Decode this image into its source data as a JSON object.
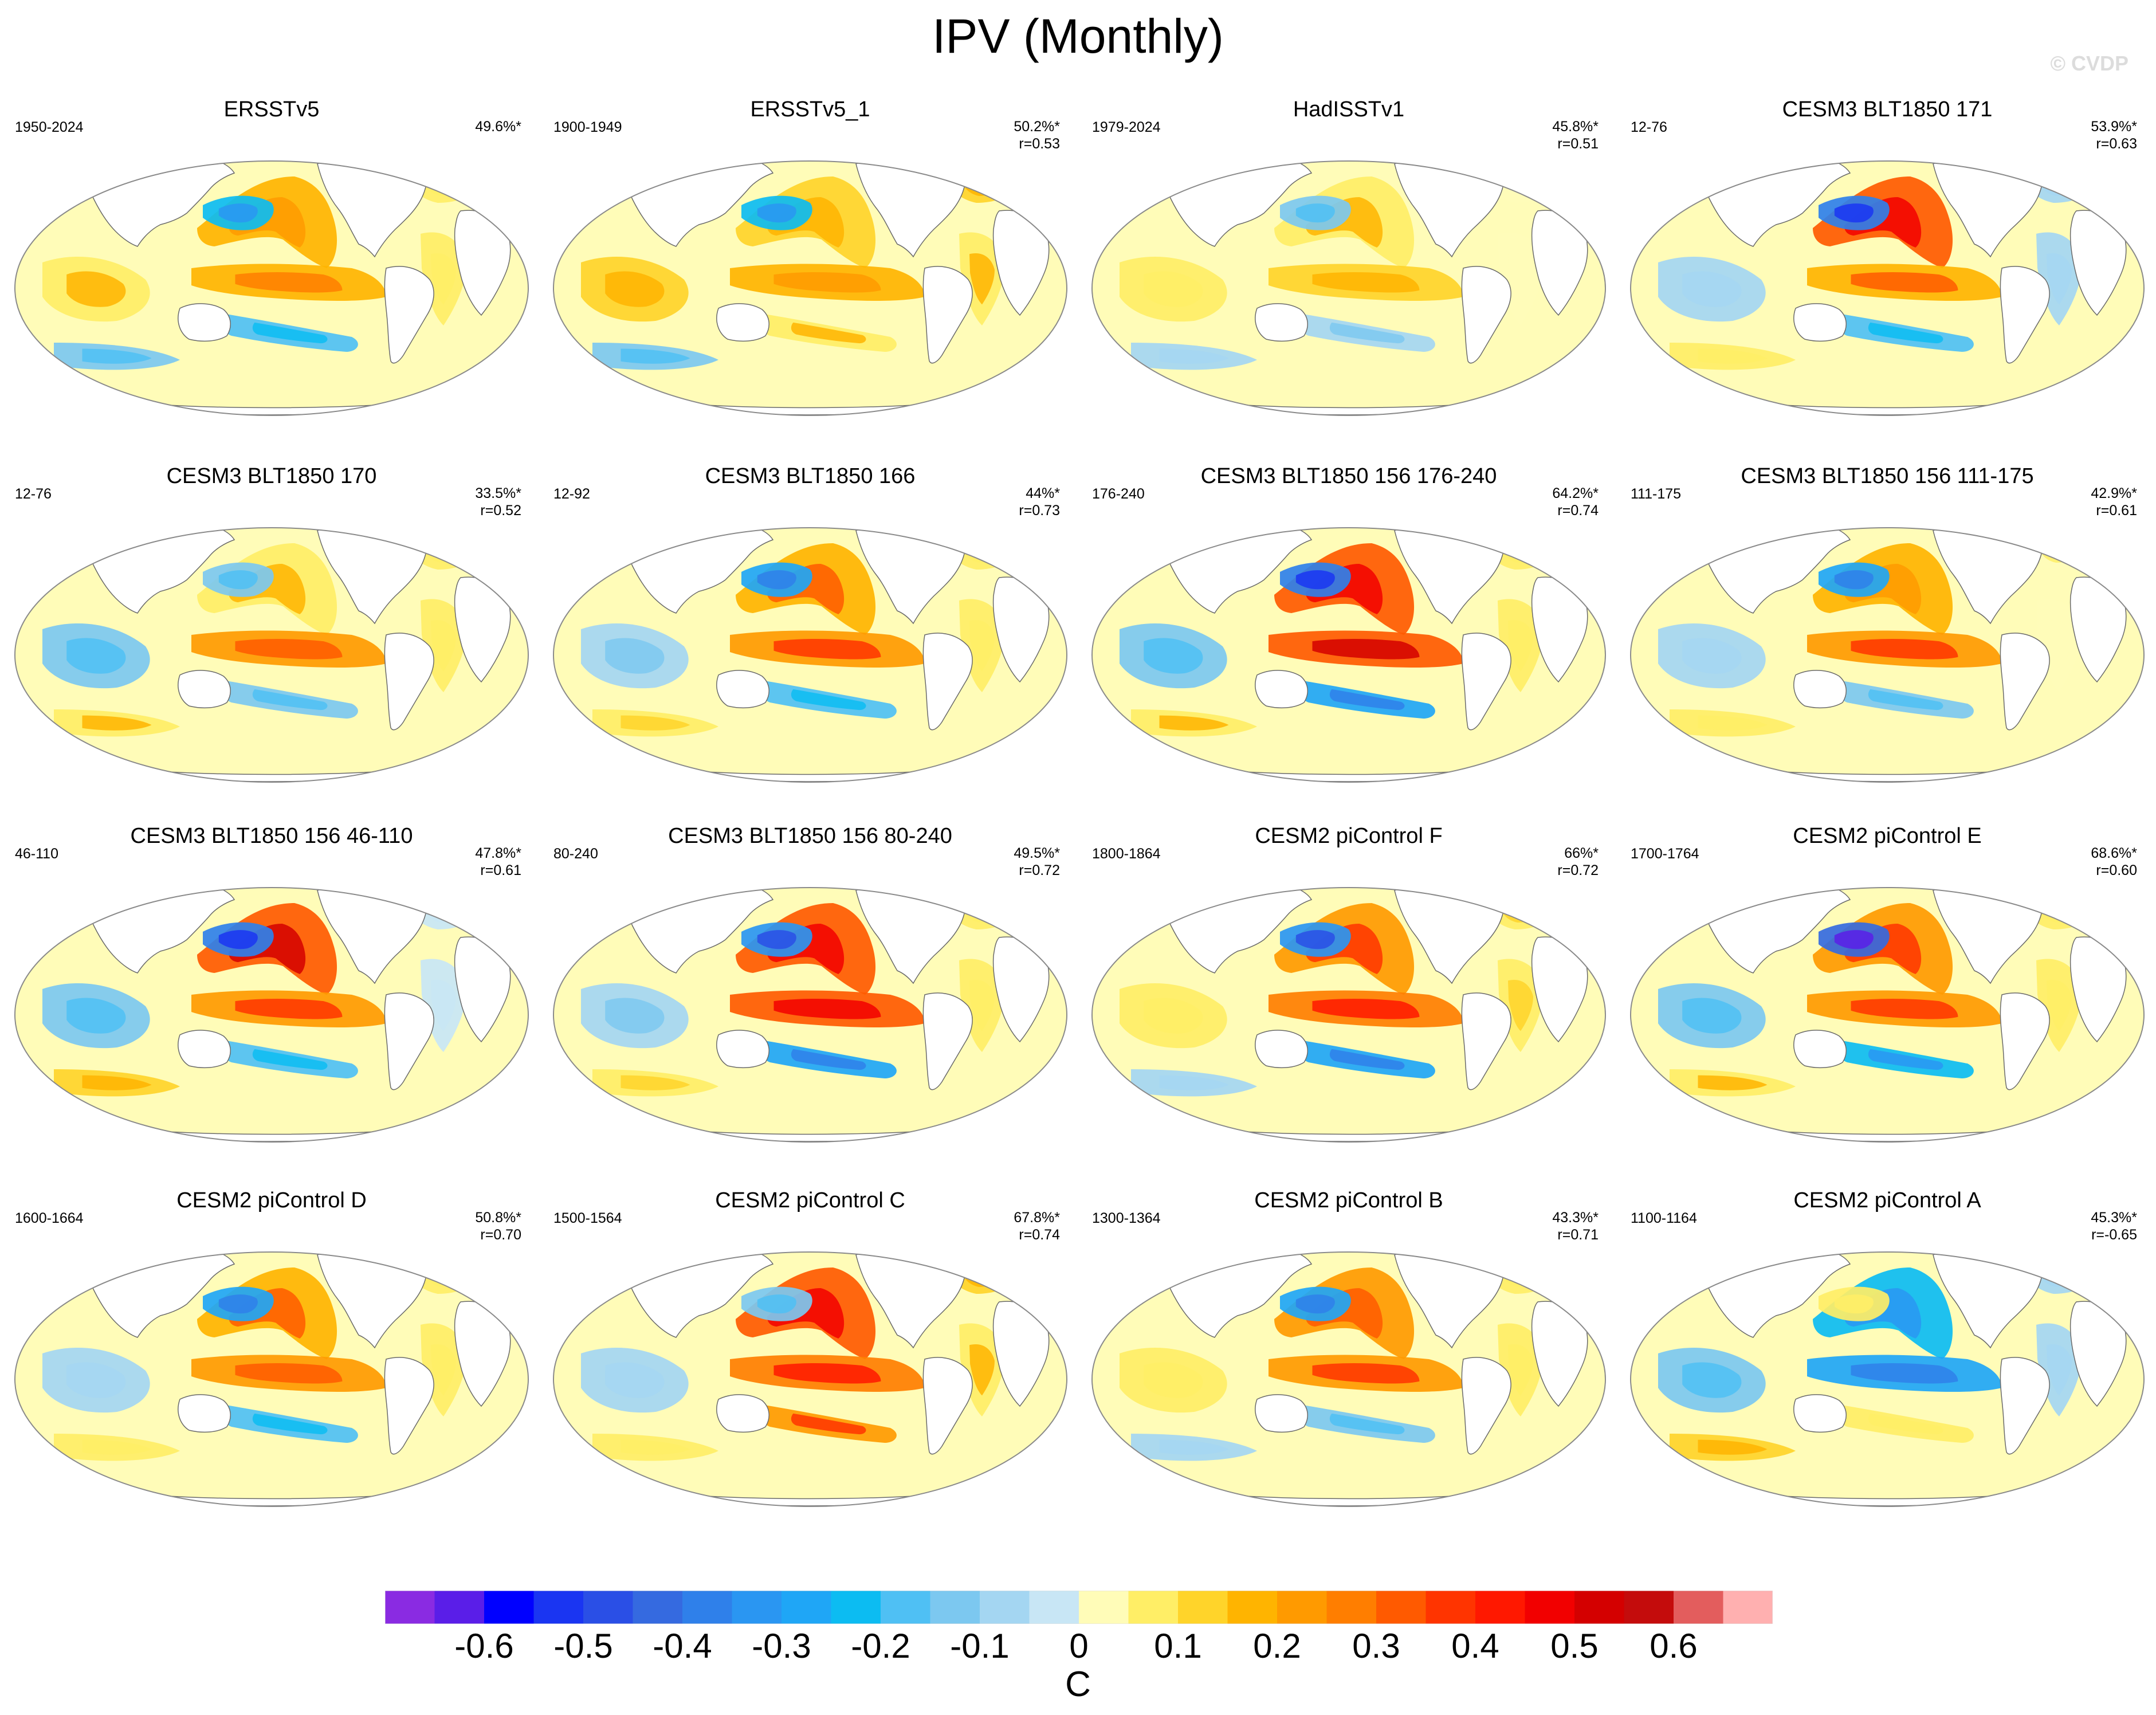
{
  "title": "IPV (Monthly)",
  "copyright": "© CVDP",
  "colors": {
    "palette": [
      "#8a2be2",
      "#5a1ee8",
      "#0000ff",
      "#1a35f2",
      "#2a4fe6",
      "#356ae0",
      "#2f80ea",
      "#2a96f2",
      "#1fa6f6",
      "#0cbcf2",
      "#4fc0f4",
      "#7cc8f0",
      "#a4d6f2",
      "#c8e6f5",
      "#fffcb8",
      "#ffee66",
      "#ffd42a",
      "#ffb400",
      "#ff9a00",
      "#ff7e00",
      "#ff5a00",
      "#ff3400",
      "#ff1800",
      "#f20000",
      "#d40000",
      "#c40c0c",
      "#e35d5d",
      "#ffb0b0"
    ],
    "land": "#ffffff",
    "ocean_base": "#fff8b0"
  },
  "colorbar": {
    "ticks": [
      "-0.6",
      "-0.5",
      "-0.4",
      "-0.3",
      "-0.2",
      "-0.1",
      "0",
      "0.1",
      "0.2",
      "0.3",
      "0.4",
      "0.5",
      "0.6"
    ],
    "units": "C"
  },
  "panels": [
    {
      "name": "ERSSTv5",
      "years": "1950-2024",
      "pct": "49.6%*",
      "r": "",
      "pattern": {
        "np": 0.15,
        "trop": 0.18,
        "kuro": -0.2,
        "sp": -0.15,
        "io": 0.1,
        "atl": 0.05
      }
    },
    {
      "name": "ERSSTv5_1",
      "years": "1900-1949",
      "pct": "50.2%*",
      "r": "r=0.53",
      "pattern": {
        "np": 0.12,
        "trop": 0.15,
        "kuro": -0.2,
        "sp": 0.1,
        "io": 0.12,
        "atl": 0.1
      }
    },
    {
      "name": "HadISSTv1",
      "years": "1979-2024",
      "pct": "45.8%*",
      "r": "r=0.51",
      "pattern": {
        "np": 0.1,
        "trop": 0.12,
        "kuro": -0.1,
        "sp": -0.08,
        "io": 0.05,
        "atl": 0.02
      }
    },
    {
      "name": "CESM3 BLT1850 171",
      "years": "12-76",
      "pct": "53.9%*",
      "r": "r=0.63",
      "pattern": {
        "np": 0.3,
        "trop": 0.2,
        "kuro": -0.35,
        "sp": -0.15,
        "io": -0.05,
        "atl": -0.05
      }
    },
    {
      "name": "CESM3 BLT1850 170",
      "years": "12-76",
      "pct": "33.5%*",
      "r": "r=0.52",
      "pattern": {
        "np": 0.1,
        "trop": 0.22,
        "kuro": -0.1,
        "sp": -0.12,
        "io": -0.1,
        "atl": 0.05
      }
    },
    {
      "name": "CESM3 BLT1850 166",
      "years": "12-92",
      "pct": "44%*",
      "r": "r=0.73",
      "pattern": {
        "np": 0.2,
        "trop": 0.25,
        "kuro": -0.25,
        "sp": -0.15,
        "io": -0.08,
        "atl": 0.05
      }
    },
    {
      "name": "CESM3 BLT1850 156 176-240",
      "years": "176-240",
      "pct": "64.2%*",
      "r": "r=0.74",
      "pattern": {
        "np": 0.3,
        "trop": 0.35,
        "kuro": -0.35,
        "sp": -0.25,
        "io": -0.1,
        "atl": 0.05
      }
    },
    {
      "name": "CESM3 BLT1850 156 111-175",
      "years": "111-175",
      "pct": "42.9%*",
      "r": "r=0.61",
      "pattern": {
        "np": 0.15,
        "trop": 0.25,
        "kuro": -0.25,
        "sp": -0.12,
        "io": -0.05,
        "atl": 0.03
      }
    },
    {
      "name": "CESM3 BLT1850 156 46-110",
      "years": "46-110",
      "pct": "47.8%*",
      "r": "r=0.61",
      "pattern": {
        "np": 0.35,
        "trop": 0.25,
        "kuro": -0.35,
        "sp": -0.15,
        "io": -0.12,
        "atl": -0.02
      }
    },
    {
      "name": "CESM3 BLT1850 156 80-240",
      "years": "80-240",
      "pct": "49.5%*",
      "r": "r=0.72",
      "pattern": {
        "np": 0.3,
        "trop": 0.3,
        "kuro": -0.3,
        "sp": -0.25,
        "io": -0.08,
        "atl": 0.05
      }
    },
    {
      "name": "CESM2 piControl F",
      "years": "1800-1864",
      "pct": "66%*",
      "r": "r=0.72",
      "pattern": {
        "np": 0.25,
        "trop": 0.28,
        "kuro": -0.3,
        "sp": -0.25,
        "io": 0.05,
        "atl": 0.08
      }
    },
    {
      "name": "CESM2 piControl E",
      "years": "1700-1764",
      "pct": "68.6%*",
      "r": "r=0.60",
      "pattern": {
        "np": 0.25,
        "trop": 0.25,
        "kuro": -0.4,
        "sp": -0.2,
        "io": -0.1,
        "atl": 0.05
      }
    },
    {
      "name": "CESM2 piControl D",
      "years": "1600-1664",
      "pct": "50.8%*",
      "r": "r=0.70",
      "pattern": {
        "np": 0.2,
        "trop": 0.22,
        "kuro": -0.25,
        "sp": -0.15,
        "io": -0.05,
        "atl": 0.05
      }
    },
    {
      "name": "CESM2 piControl C",
      "years": "1500-1564",
      "pct": "67.8%*",
      "r": "r=0.74",
      "pattern": {
        "np": 0.3,
        "trop": 0.28,
        "kuro": -0.1,
        "sp": 0.25,
        "io": -0.05,
        "atl": 0.1
      }
    },
    {
      "name": "CESM2 piControl B",
      "years": "1300-1364",
      "pct": "43.3%*",
      "r": "r=0.71",
      "pattern": {
        "np": 0.22,
        "trop": 0.25,
        "kuro": -0.25,
        "sp": -0.1,
        "io": 0.05,
        "atl": 0.05
      }
    },
    {
      "name": "CESM2 piControl A",
      "years": "1100-1164",
      "pct": "45.3%*",
      "r": "r=-0.65",
      "pattern": {
        "np": -0.2,
        "trop": -0.25,
        "kuro": 0.05,
        "sp": 0.05,
        "io": -0.12,
        "atl": -0.05
      }
    }
  ]
}
